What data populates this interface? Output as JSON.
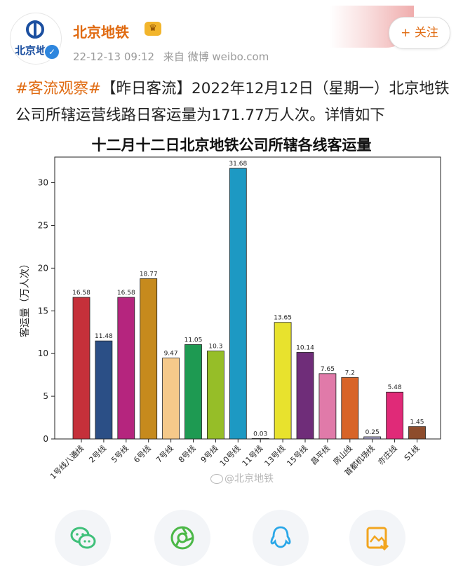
{
  "post": {
    "author": "北京地铁",
    "avatar_text": "北京地铁",
    "timestamp": "22-12-13 09:12",
    "source": "来自 微博 weibo.com",
    "follow_label": "+ 关注",
    "hashtag": "#客流观察#",
    "body": "【昨日客流】2022年12月12日（星期一）北京地铁公司所辖运营线路日客运量为171.77万人次。详情如下"
  },
  "watermark": "@北京地铁",
  "share_buttons": [
    "wechat-icon",
    "moments-icon",
    "qq-icon",
    "save-image-icon"
  ],
  "chart_data": {
    "type": "bar",
    "title": "十二月十二日北京地铁公司所辖各线客运量",
    "ylabel": "客运量（万人次）",
    "xlabel": "",
    "ylim": [
      0,
      33
    ],
    "yticks": [
      0,
      5,
      10,
      15,
      20,
      25,
      30
    ],
    "categories": [
      "1号线八通线",
      "2号线",
      "5号线",
      "6号线",
      "7号线",
      "8号线",
      "9号线",
      "10号线",
      "11号线",
      "13号线",
      "15号线",
      "昌平线",
      "房山线",
      "首都机场线",
      "亦庄线",
      "S1线"
    ],
    "values": [
      16.58,
      11.48,
      16.58,
      18.77,
      9.47,
      11.05,
      10.3,
      31.68,
      0.03,
      13.65,
      10.14,
      7.65,
      7.2,
      0.25,
      5.48,
      1.45
    ],
    "value_labels": [
      "16.58",
      "11.48",
      "16.58",
      "18.77",
      "9.47",
      "11.05",
      "10.3",
      "31.68",
      "0.03",
      "13.65",
      "10.14",
      "7.65",
      "7.2",
      "0.25",
      "5.48",
      "1.45"
    ],
    "colors": [
      "#c5303a",
      "#2b4f86",
      "#b5257e",
      "#c68a1d",
      "#f5c98a",
      "#1e9a52",
      "#96be28",
      "#1d99c3",
      "#e8a6c0",
      "#e8e22d",
      "#6f2d79",
      "#e07aa9",
      "#d86428",
      "#a9a6c9",
      "#e02a78",
      "#8d4c2c"
    ]
  }
}
